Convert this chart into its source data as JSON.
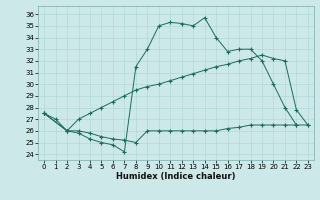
{
  "xlabel": "Humidex (Indice chaleur)",
  "bg_color": "#cce8e8",
  "grid_color": "#aad4d4",
  "line_color": "#1a6b5a",
  "xlim": [
    -0.5,
    23.5
  ],
  "ylim": [
    23.5,
    36.7
  ],
  "yticks": [
    24,
    25,
    26,
    27,
    28,
    29,
    30,
    31,
    32,
    33,
    34,
    35,
    36
  ],
  "xticks": [
    0,
    1,
    2,
    3,
    4,
    5,
    6,
    7,
    8,
    9,
    10,
    11,
    12,
    13,
    14,
    15,
    16,
    17,
    18,
    19,
    20,
    21,
    22,
    23
  ],
  "s1_x": [
    0,
    1,
    2,
    3,
    4,
    5,
    6,
    7,
    8,
    9,
    10,
    11,
    12,
    13,
    14,
    15,
    16,
    17,
    18,
    19,
    20,
    21,
    22
  ],
  "s1_y": [
    27.5,
    27.0,
    26.0,
    25.8,
    25.3,
    25.0,
    24.8,
    24.2,
    31.5,
    33.0,
    35.0,
    35.3,
    35.2,
    35.0,
    35.7,
    34.0,
    32.8,
    33.0,
    33.0,
    32.0,
    30.0,
    28.0,
    26.5
  ],
  "s2_x": [
    0,
    2,
    3,
    4,
    5,
    6,
    7,
    8,
    9,
    10,
    11,
    12,
    13,
    14,
    15,
    16,
    17,
    18,
    19,
    20,
    21,
    22,
    23
  ],
  "s2_y": [
    27.5,
    26.0,
    26.0,
    25.8,
    25.5,
    25.3,
    25.2,
    25.0,
    26.0,
    26.0,
    26.0,
    26.0,
    26.0,
    26.0,
    26.0,
    26.2,
    26.3,
    26.5,
    26.5,
    26.5,
    26.5,
    26.5,
    26.5
  ],
  "s3_x": [
    0,
    2,
    3,
    4,
    5,
    6,
    7,
    8,
    9,
    10,
    11,
    12,
    13,
    14,
    15,
    16,
    17,
    18,
    19,
    20,
    21,
    22,
    23
  ],
  "s3_y": [
    27.5,
    26.0,
    27.0,
    27.5,
    28.0,
    28.5,
    29.0,
    29.5,
    29.8,
    30.0,
    30.3,
    30.6,
    30.9,
    31.2,
    31.5,
    31.7,
    32.0,
    32.2,
    32.5,
    32.2,
    32.0,
    27.8,
    26.5
  ]
}
